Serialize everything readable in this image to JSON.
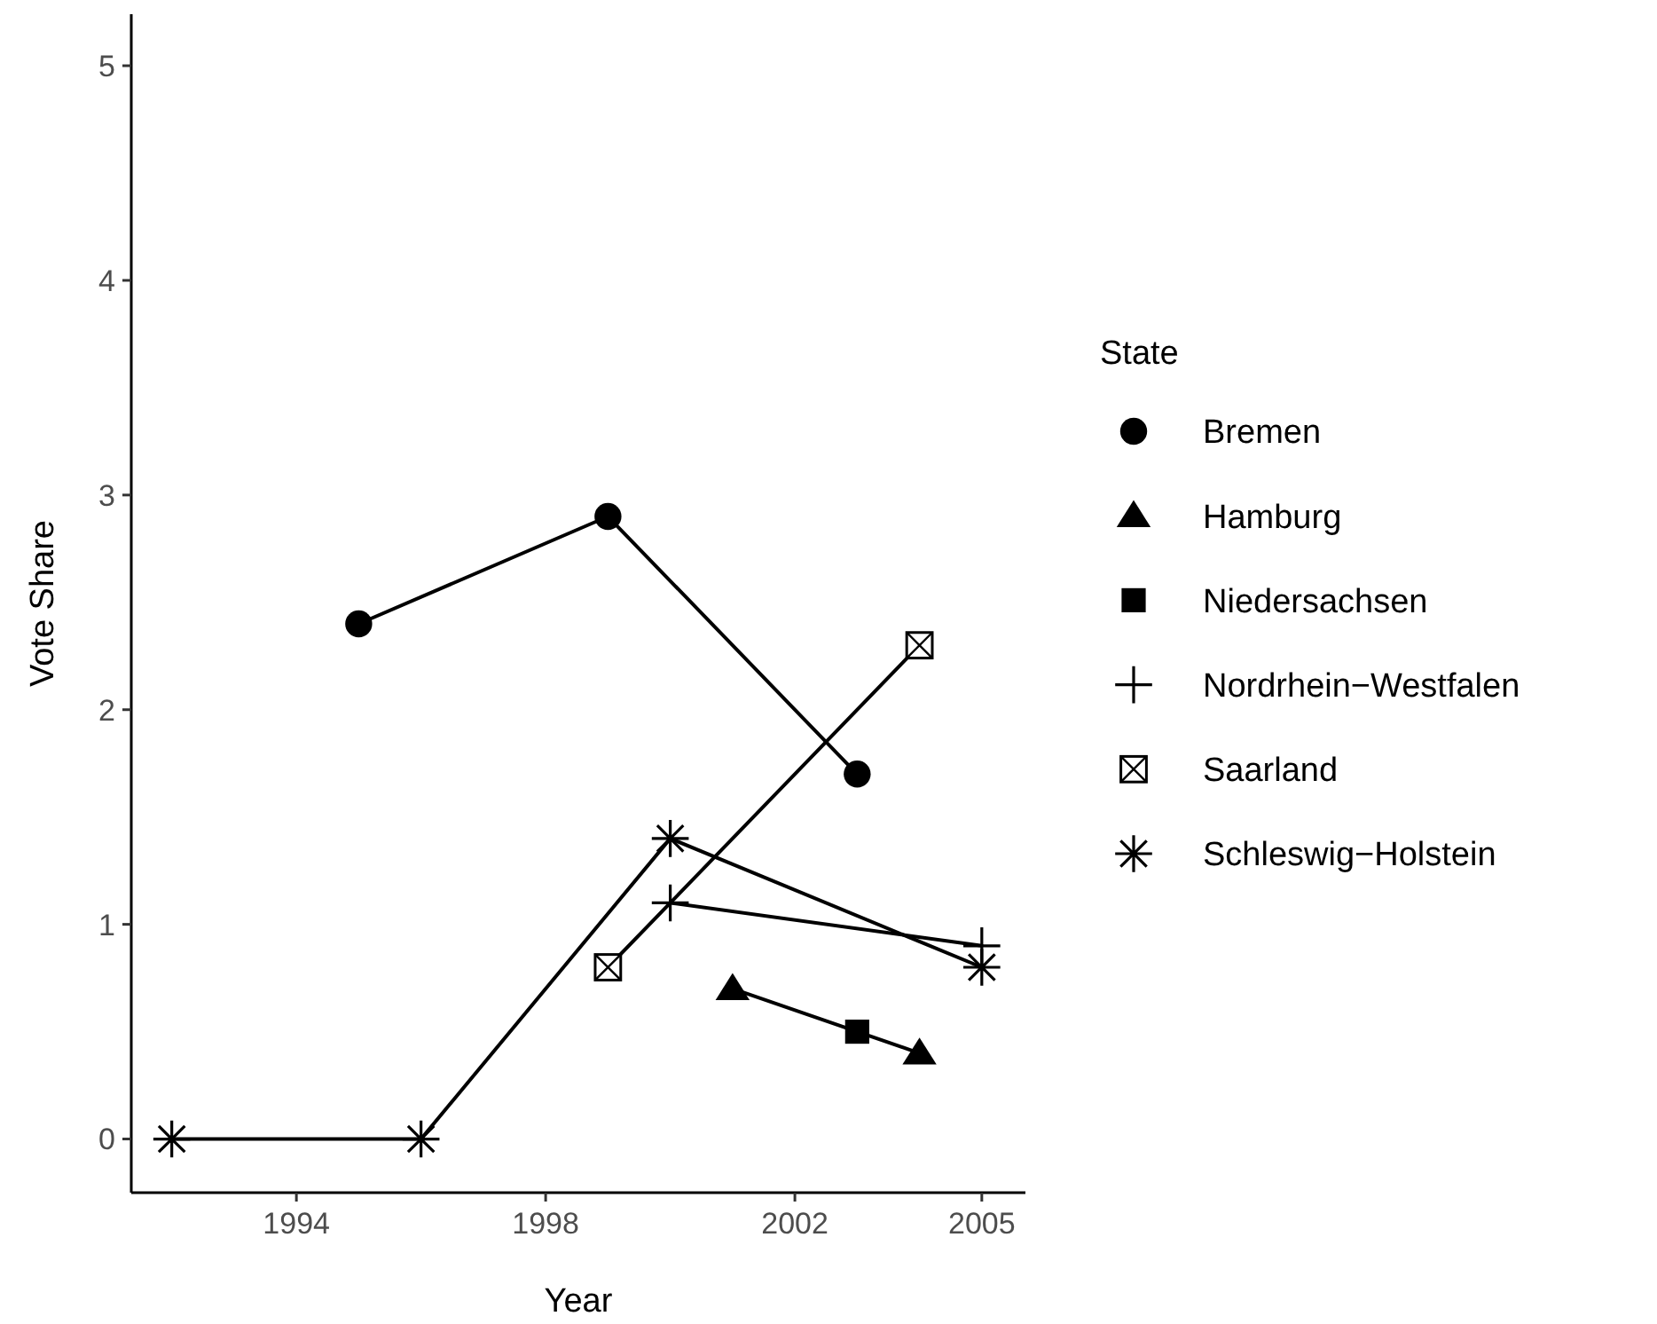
{
  "chart_data": {
    "type": "line",
    "xlabel": "Year",
    "ylabel": "Vote Share",
    "legend_title": "State",
    "legend": "right",
    "grid": false,
    "xlim": [
      1991.35,
      2005.7
    ],
    "xticks": [
      1994,
      1998,
      2002,
      2005
    ],
    "ylim": [
      -0.25,
      5.24
    ],
    "yticks": [
      0,
      1,
      2,
      3,
      4,
      5
    ],
    "series": [
      {
        "name": "Bremen",
        "color": "#000000",
        "marker": "circle",
        "x": [
          1995,
          1999,
          2003
        ],
        "values": [
          2.4,
          2.9,
          1.7
        ]
      },
      {
        "name": "Hamburg",
        "color": "#000000",
        "marker": "triangle",
        "x": [
          2001,
          2004
        ],
        "values": [
          0.7,
          0.4
        ]
      },
      {
        "name": "Niedersachsen",
        "color": "#000000",
        "marker": "square",
        "x": [
          2003
        ],
        "values": [
          0.5
        ]
      },
      {
        "name": "Nordrhein−Westfalen",
        "color": "#000000",
        "marker": "cross",
        "x": [
          2000,
          2005
        ],
        "values": [
          1.1,
          0.9
        ]
      },
      {
        "name": "Saarland",
        "color": "#000000",
        "marker": "square",
        "x": [
          1999,
          2004
        ],
        "values": [
          0.8,
          2.3
        ]
      },
      {
        "name": "Schleswig−Holstein",
        "color": "#000000",
        "marker": "star",
        "x": [
          1992,
          1996,
          2000,
          2005
        ],
        "values": [
          0,
          0,
          1.4,
          0.8
        ]
      }
    ]
  }
}
